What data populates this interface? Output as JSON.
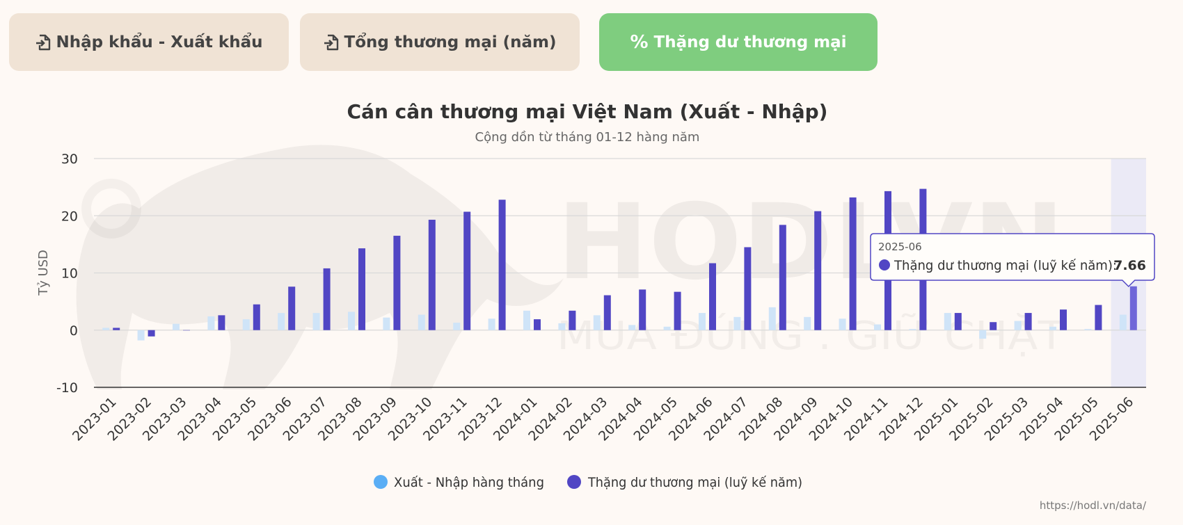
{
  "tabs": [
    {
      "label": "Nhập khẩu - Xuất khẩu",
      "icon": "file-import-icon",
      "active": false
    },
    {
      "label": "Tổng thương mại (năm)",
      "icon": "file-import-icon",
      "active": false
    },
    {
      "label": "Thặng dư thương mại",
      "icon": "percent-icon",
      "active": true
    }
  ],
  "colors": {
    "tab_inactive": "#f0e3d5",
    "tab_active": "#7fcd7f",
    "monthly_series": "#cfe4f8",
    "monthly_legend": "#5aaef5",
    "cumulative_series": "#5146c4",
    "highlight_band": "#e8e8f6",
    "background": "#fef9f5"
  },
  "watermark": {
    "text": "HODLVN",
    "slogan": "MUA ĐÚNG . GIỮ CHẶT"
  },
  "source_url": "https://hodl.vn/data/",
  "chart_data": {
    "type": "bar",
    "title": "Cán cân thương mại Việt Nam (Xuất - Nhập)",
    "subtitle": "Cộng dồn từ tháng 01-12 hàng năm",
    "xlabel": "",
    "ylabel": "Tỷ USD",
    "ylim": [
      -10,
      30
    ],
    "yticks": [
      30,
      20,
      10,
      0,
      -10
    ],
    "grid": true,
    "legend_position": "bottom",
    "categories": [
      "2023-01",
      "2023-02",
      "2023-03",
      "2023-04",
      "2023-05",
      "2023-06",
      "2023-07",
      "2023-08",
      "2023-09",
      "2023-10",
      "2023-11",
      "2023-12",
      "2024-01",
      "2024-02",
      "2024-03",
      "2024-04",
      "2024-05",
      "2024-06",
      "2024-07",
      "2024-08",
      "2024-09",
      "2024-10",
      "2024-11",
      "2024-12",
      "2025-01",
      "2025-02",
      "2025-03",
      "2025-04",
      "2025-05",
      "2025-06"
    ],
    "series": [
      {
        "name": "Xuất - Nhập hàng tháng",
        "values": [
          0.4,
          -1.8,
          1.1,
          2.4,
          1.9,
          3.0,
          3.0,
          3.2,
          2.2,
          2.7,
          1.3,
          2.0,
          3.4,
          1.2,
          2.6,
          0.9,
          0.6,
          3.0,
          2.3,
          4.0,
          2.3,
          2.0,
          1.0,
          0.2,
          3.0,
          -1.5,
          1.6,
          0.6,
          0.2,
          2.7
        ]
      },
      {
        "name": "Thặng dư thương mại (luỹ kế năm)",
        "values": [
          0.4,
          -1.1,
          0.0,
          2.6,
          4.5,
          7.6,
          10.8,
          14.3,
          16.5,
          19.3,
          20.7,
          22.8,
          1.9,
          3.4,
          6.1,
          7.1,
          6.7,
          11.7,
          14.5,
          18.4,
          20.8,
          23.2,
          24.3,
          24.7,
          3.0,
          1.4,
          3.0,
          3.6,
          4.4,
          7.66
        ]
      }
    ],
    "highlight_category": "2025-06",
    "tooltip": {
      "date": "2025-06",
      "series_label": "Thặng dư thương mại (luỹ kế năm):",
      "value": "7.66"
    }
  }
}
